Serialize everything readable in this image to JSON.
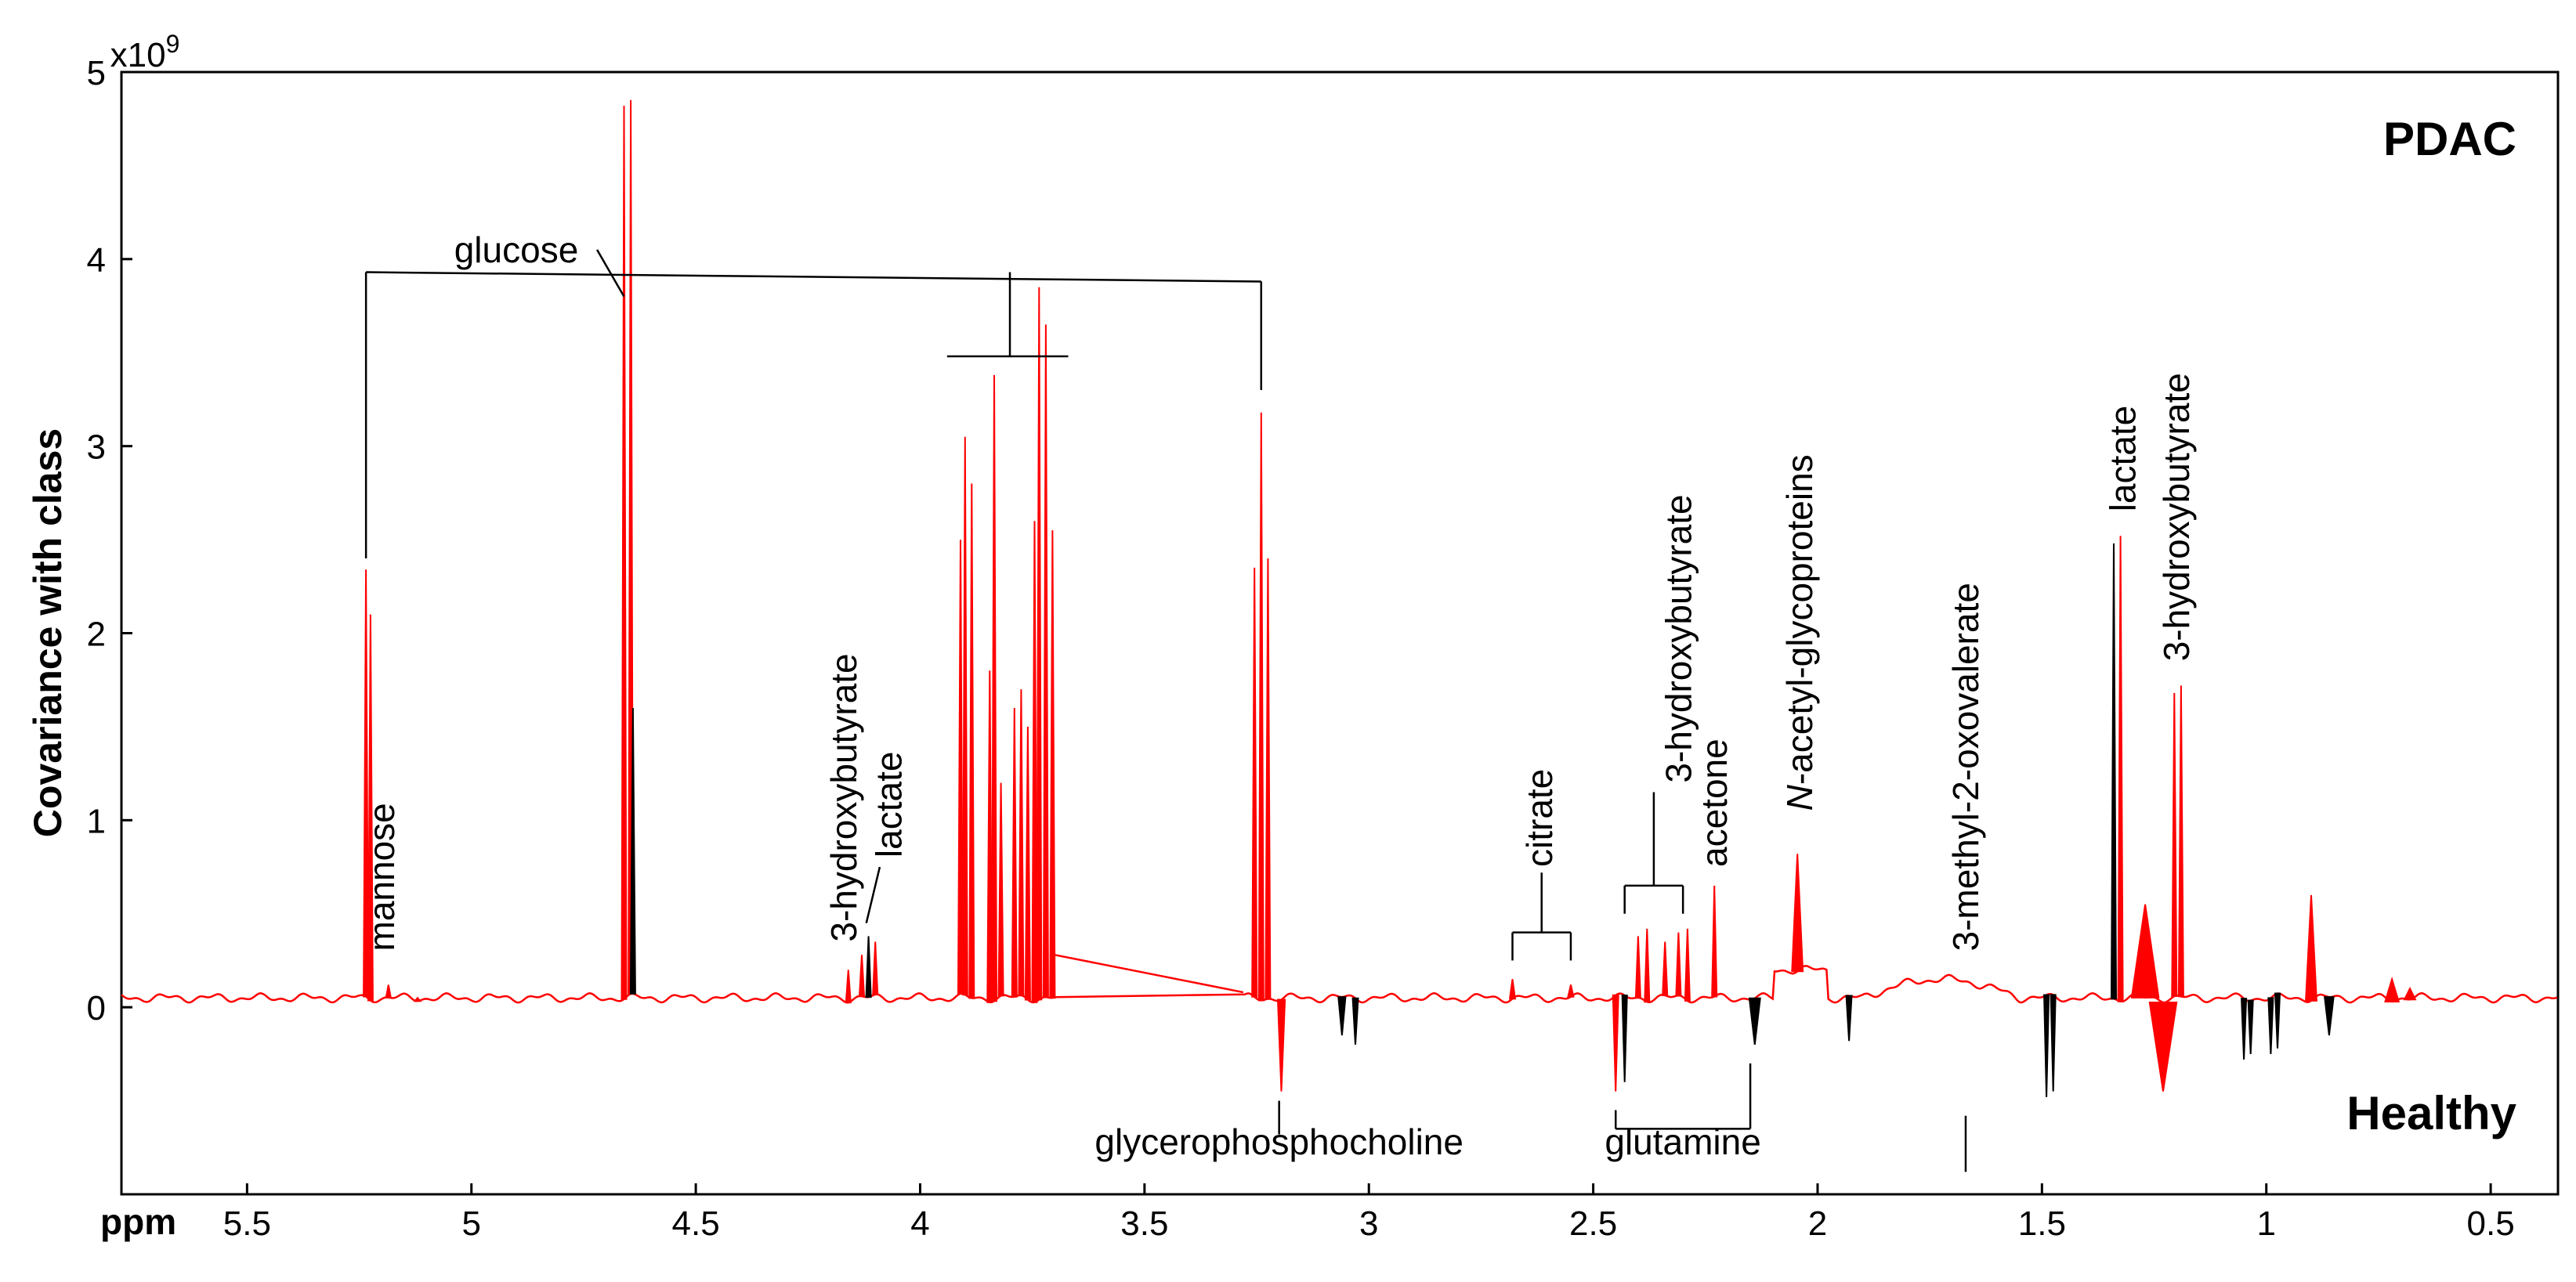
{
  "chart_data": {
    "type": "line",
    "title": "",
    "ylabel": "Covariance with class",
    "xlabel": "ppm",
    "y_exponent_prefix": "x10",
    "y_exponent_power": "9",
    "xlim": [
      5.78,
      0.35
    ],
    "ylim": [
      -1.0,
      5.0
    ],
    "x_reversed": true,
    "x_ticks": [
      5.5,
      5,
      4.5,
      4,
      3.5,
      3,
      2.5,
      2,
      1.5,
      1,
      0.5
    ],
    "x_tick_labels": [
      "5.5",
      "5",
      "4.5",
      "4",
      "3.5",
      "3",
      "2.5",
      "2",
      "1.5",
      "1",
      "0.5"
    ],
    "y_ticks": [
      0,
      1,
      2,
      3,
      4,
      5
    ],
    "y_tick_labels": [
      "0",
      "1",
      "2",
      "3",
      "4",
      "5"
    ],
    "grid": false,
    "colors": {
      "high_correlation": "#ff0000",
      "low_correlation": "#000000",
      "axes": "#000000"
    },
    "class_labels": {
      "positive": "PDAC",
      "negative": "Healthy"
    },
    "baseline": 0.05,
    "peaks": [
      {
        "ppm": 5.235,
        "value": 2.34,
        "width": 0.004,
        "color": "red"
      },
      {
        "ppm": 5.225,
        "value": 2.1,
        "width": 0.004,
        "color": "red"
      },
      {
        "ppm": 5.185,
        "value": 0.12,
        "width": 0.004,
        "color": "red"
      },
      {
        "ppm": 5.12,
        "value": 0.05,
        "width": 0.006,
        "color": "red"
      },
      {
        "ppm": 4.66,
        "value": 4.82,
        "width": 0.003,
        "color": "red"
      },
      {
        "ppm": 4.645,
        "value": 4.85,
        "width": 0.003,
        "color": "red"
      },
      {
        "ppm": 4.64,
        "value": 1.6,
        "width": 0.003,
        "color": "black"
      },
      {
        "ppm": 4.16,
        "value": 0.2,
        "width": 0.004,
        "color": "red"
      },
      {
        "ppm": 4.13,
        "value": 0.28,
        "width": 0.004,
        "color": "red"
      },
      {
        "ppm": 4.115,
        "value": 0.38,
        "width": 0.003,
        "color": "black"
      },
      {
        "ppm": 4.1,
        "value": 0.35,
        "width": 0.003,
        "color": "red"
      },
      {
        "ppm": 3.91,
        "value": 2.5,
        "width": 0.003,
        "color": "red"
      },
      {
        "ppm": 3.9,
        "value": 3.05,
        "width": 0.003,
        "color": "red"
      },
      {
        "ppm": 3.885,
        "value": 2.8,
        "width": 0.003,
        "color": "red"
      },
      {
        "ppm": 3.845,
        "value": 1.8,
        "width": 0.003,
        "color": "red"
      },
      {
        "ppm": 3.835,
        "value": 3.38,
        "width": 0.003,
        "color": "red"
      },
      {
        "ppm": 3.82,
        "value": 1.2,
        "width": 0.003,
        "color": "red"
      },
      {
        "ppm": 3.79,
        "value": 1.6,
        "width": 0.003,
        "color": "red"
      },
      {
        "ppm": 3.775,
        "value": 1.7,
        "width": 0.003,
        "color": "red"
      },
      {
        "ppm": 3.76,
        "value": 1.5,
        "width": 0.003,
        "color": "red"
      },
      {
        "ppm": 3.745,
        "value": 2.6,
        "width": 0.003,
        "color": "red"
      },
      {
        "ppm": 3.735,
        "value": 3.85,
        "width": 0.003,
        "color": "red"
      },
      {
        "ppm": 3.72,
        "value": 3.65,
        "width": 0.003,
        "color": "red"
      },
      {
        "ppm": 3.705,
        "value": 2.55,
        "width": 0.003,
        "color": "red"
      },
      {
        "ppm": 3.255,
        "value": 2.35,
        "width": 0.003,
        "color": "red"
      },
      {
        "ppm": 3.24,
        "value": 3.18,
        "width": 0.003,
        "color": "red"
      },
      {
        "ppm": 3.225,
        "value": 2.4,
        "width": 0.003,
        "color": "red"
      },
      {
        "ppm": 3.195,
        "value": -0.45,
        "width": 0.008,
        "color": "red"
      },
      {
        "ppm": 3.06,
        "value": -0.15,
        "width": 0.008,
        "color": "black"
      },
      {
        "ppm": 3.03,
        "value": -0.2,
        "width": 0.006,
        "color": "black"
      },
      {
        "ppm": 2.68,
        "value": 0.15,
        "width": 0.006,
        "color": "red"
      },
      {
        "ppm": 2.55,
        "value": 0.12,
        "width": 0.006,
        "color": "red"
      },
      {
        "ppm": 2.45,
        "value": -0.45,
        "width": 0.006,
        "color": "red"
      },
      {
        "ppm": 2.43,
        "value": -0.4,
        "width": 0.005,
        "color": "black"
      },
      {
        "ppm": 2.4,
        "value": 0.38,
        "width": 0.004,
        "color": "red"
      },
      {
        "ppm": 2.38,
        "value": 0.42,
        "width": 0.004,
        "color": "red"
      },
      {
        "ppm": 2.34,
        "value": 0.35,
        "width": 0.004,
        "color": "red"
      },
      {
        "ppm": 2.31,
        "value": 0.4,
        "width": 0.004,
        "color": "red"
      },
      {
        "ppm": 2.29,
        "value": 0.42,
        "width": 0.004,
        "color": "red"
      },
      {
        "ppm": 2.23,
        "value": 0.65,
        "width": 0.004,
        "color": "red"
      },
      {
        "ppm": 2.14,
        "value": -0.2,
        "width": 0.012,
        "color": "black"
      },
      {
        "ppm": 2.045,
        "value": 0.82,
        "width": 0.012,
        "color": "red"
      },
      {
        "ppm": 1.93,
        "value": -0.18,
        "width": 0.006,
        "color": "black"
      },
      {
        "ppm": 1.49,
        "value": -0.48,
        "width": 0.004,
        "color": "black"
      },
      {
        "ppm": 1.475,
        "value": -0.45,
        "width": 0.004,
        "color": "black"
      },
      {
        "ppm": 1.34,
        "value": 2.48,
        "width": 0.003,
        "color": "black"
      },
      {
        "ppm": 1.325,
        "value": 2.52,
        "width": 0.003,
        "color": "red"
      },
      {
        "ppm": 1.27,
        "value": 0.55,
        "width": 0.03,
        "color": "red"
      },
      {
        "ppm": 1.23,
        "value": -0.45,
        "width": 0.03,
        "color": "red"
      },
      {
        "ppm": 1.205,
        "value": 1.68,
        "width": 0.003,
        "color": "red"
      },
      {
        "ppm": 1.19,
        "value": 1.72,
        "width": 0.003,
        "color": "red"
      },
      {
        "ppm": 1.05,
        "value": -0.28,
        "width": 0.004,
        "color": "black"
      },
      {
        "ppm": 1.035,
        "value": -0.25,
        "width": 0.004,
        "color": "black"
      },
      {
        "ppm": 0.99,
        "value": -0.25,
        "width": 0.004,
        "color": "black"
      },
      {
        "ppm": 0.975,
        "value": -0.22,
        "width": 0.004,
        "color": "black"
      },
      {
        "ppm": 0.9,
        "value": 0.6,
        "width": 0.012,
        "color": "red"
      },
      {
        "ppm": 0.86,
        "value": -0.15,
        "width": 0.01,
        "color": "black"
      },
      {
        "ppm": 0.72,
        "value": 0.15,
        "width": 0.015,
        "color": "red"
      },
      {
        "ppm": 0.68,
        "value": 0.1,
        "width": 0.012,
        "color": "red"
      }
    ],
    "annotations": [
      {
        "text": "glucose",
        "ppm": 4.9,
        "y": 4.05,
        "orient": "h"
      },
      {
        "text": "mannose",
        "ppm": 5.2,
        "y": 0.3,
        "orient": "v"
      },
      {
        "text": "3-hydroxybutyrate",
        "ppm": 4.17,
        "y": 0.35,
        "orient": "v"
      },
      {
        "text": "lactate",
        "ppm": 4.07,
        "y": 0.8,
        "orient": "v"
      },
      {
        "text": "citrate",
        "ppm": 2.62,
        "y": 0.75,
        "orient": "v"
      },
      {
        "text": "3-hydroxybutyrate",
        "ppm": 2.31,
        "y": 1.2,
        "orient": "v"
      },
      {
        "text": "acetone",
        "ppm": 2.23,
        "y": 0.75,
        "orient": "v"
      },
      {
        "text": "N-acetyl-glycoproteins",
        "ppm": 2.04,
        "y": 1.05,
        "orient": "v",
        "italic_prefix": "N"
      },
      {
        "text": "3-methyl-2-oxovalerate",
        "ppm": 1.67,
        "y": 0.3,
        "orient": "v"
      },
      {
        "text": "lactate",
        "ppm": 1.32,
        "y": 2.65,
        "orient": "v"
      },
      {
        "text": "3-hydroxybutyrate",
        "ppm": 1.2,
        "y": 1.85,
        "orient": "v"
      },
      {
        "text": "glycerophosphocholine",
        "ppm": 3.2,
        "y": -0.72,
        "orient": "h"
      },
      {
        "text": "glutamine",
        "ppm": 2.3,
        "y": -0.72,
        "orient": "h"
      }
    ]
  }
}
